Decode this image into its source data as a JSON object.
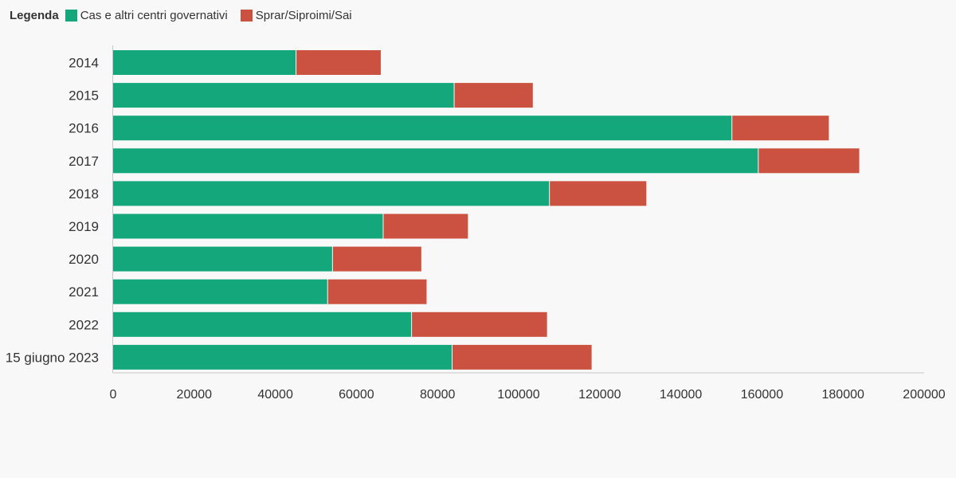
{
  "legend": {
    "title": "Legenda"
  },
  "chart_data": {
    "type": "bar",
    "orientation": "horizontal",
    "stacked": true,
    "title": "",
    "xlabel": "",
    "ylabel": "",
    "categories": [
      "2014",
      "2015",
      "2016",
      "2017",
      "2018",
      "2019",
      "2020",
      "2021",
      "2022",
      "15 giugno 2023"
    ],
    "series": [
      {
        "name": "Cas e altri centri governativi",
        "color": "#13a77b",
        "values": [
          45000,
          84000,
          152500,
          159000,
          107500,
          66500,
          54000,
          52800,
          73500,
          83500
        ]
      },
      {
        "name": "Sprar/Siproimi/Sai",
        "color": "#cb5140",
        "values": [
          21000,
          19500,
          24000,
          25000,
          24000,
          21000,
          22000,
          24500,
          33500,
          34500
        ]
      }
    ],
    "xlim": [
      0,
      200000
    ],
    "xticks": [
      0,
      20000,
      40000,
      60000,
      80000,
      100000,
      120000,
      140000,
      160000,
      180000,
      200000
    ],
    "grid": false,
    "legend_position": "top-left"
  }
}
